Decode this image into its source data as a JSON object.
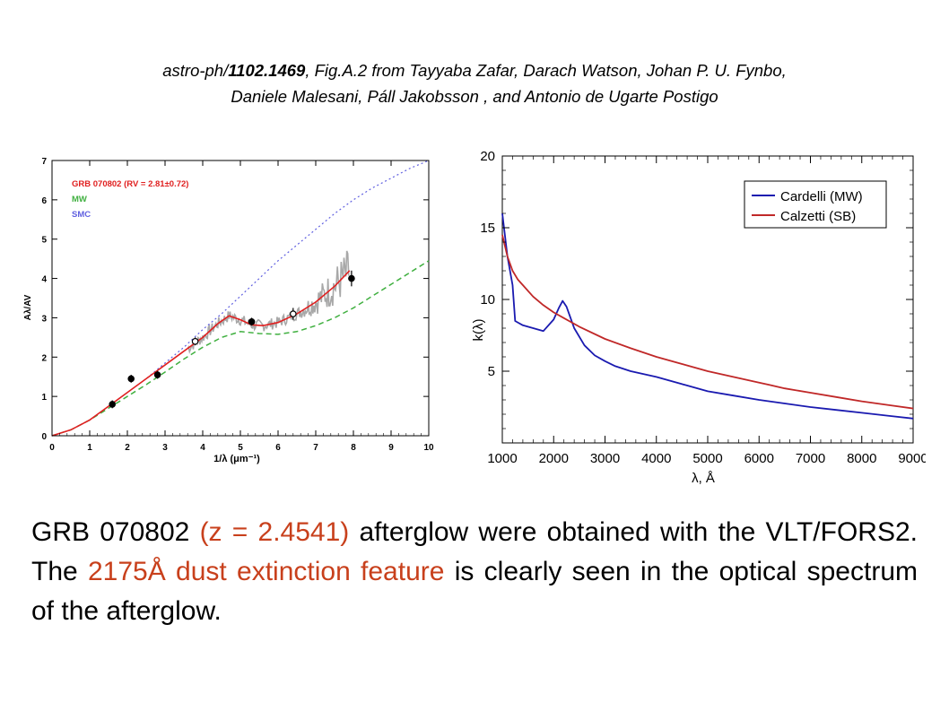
{
  "header": {
    "prefix": "astro-ph/",
    "arxiv_id": "1102.1469",
    "line1_rest": ", Fig.A.2 from Tayyaba Zafar, Darach Watson, Johan P. U. Fynbo,",
    "line2": "Daniele Malesani, Páll Jakobsson , and Antonio de Ugarte Postigo"
  },
  "caption": {
    "part1": "GRB 070802 ",
    "part2": "(z = 2.4541)",
    "part3": " afterglow were obtained with the VLT/FORS2. The ",
    "part4": "2175Å dust extinction feature",
    "part5": " is clearly seen in the optical spectrum of the afterglow."
  },
  "colors": {
    "highlight": "#c8401c",
    "mw_red": "#e02020",
    "mw_green": "#40b040",
    "smc_blue": "#6060e0",
    "cardelli": "#1a1ab0",
    "calzetti": "#c02828"
  },
  "chart_data": [
    {
      "type": "line",
      "xlabel": "1/λ (μm⁻¹)",
      "ylabel": "Aλ/AV",
      "xlim": [
        0,
        10
      ],
      "ylim": [
        0,
        7
      ],
      "x_ticks": [
        "0",
        "1",
        "2",
        "3",
        "4",
        "5",
        "6",
        "7",
        "8",
        "9",
        "10"
      ],
      "y_ticks": [
        "0",
        "1",
        "2",
        "3",
        "4",
        "5",
        "6",
        "7"
      ],
      "legend": [
        "GRB 070802 (RV = 2.81±0.72)",
        "MW",
        "SMC"
      ],
      "legend_position": "top-left",
      "series": [
        {
          "name": "GRB 070802 (RV = 2.81±0.72)",
          "x": [
            0.0,
            0.5,
            1.0,
            1.5,
            2.0,
            2.5,
            3.0,
            3.5,
            4.0,
            4.4,
            4.7,
            5.0,
            5.3,
            5.6,
            6.0,
            6.5,
            7.0,
            7.5,
            7.9
          ],
          "y": [
            0.0,
            0.15,
            0.4,
            0.75,
            1.1,
            1.45,
            1.8,
            2.15,
            2.5,
            2.85,
            3.05,
            2.95,
            2.82,
            2.8,
            2.88,
            3.1,
            3.4,
            3.8,
            4.2
          ]
        },
        {
          "name": "MW",
          "x": [
            0.0,
            0.5,
            1.0,
            1.5,
            2.0,
            2.5,
            3.0,
            3.5,
            4.0,
            4.5,
            5.0,
            5.5,
            6.0,
            6.5,
            7.0,
            7.5,
            8.0,
            8.5,
            9.0,
            9.5,
            10.0
          ],
          "y": [
            0.0,
            0.15,
            0.4,
            0.7,
            1.0,
            1.3,
            1.62,
            1.95,
            2.25,
            2.5,
            2.65,
            2.6,
            2.58,
            2.65,
            2.8,
            3.0,
            3.25,
            3.55,
            3.85,
            4.15,
            4.45
          ]
        },
        {
          "name": "SMC",
          "x": [
            0.0,
            0.5,
            1.0,
            1.5,
            2.0,
            2.5,
            3.0,
            3.5,
            4.0,
            4.5,
            5.0,
            5.5,
            6.0,
            6.5,
            7.0,
            7.5,
            8.0,
            8.5,
            9.0,
            9.5,
            10.0
          ],
          "y": [
            0.0,
            0.15,
            0.4,
            0.75,
            1.1,
            1.45,
            1.85,
            2.25,
            2.7,
            3.1,
            3.55,
            4.0,
            4.45,
            4.85,
            5.25,
            5.65,
            6.0,
            6.3,
            6.55,
            6.8,
            7.0
          ]
        }
      ],
      "photometry": [
        {
          "x": 1.6,
          "y": 0.8,
          "err": 0.1,
          "filled": true
        },
        {
          "x": 2.1,
          "y": 1.45,
          "err": 0.1,
          "filled": true
        },
        {
          "x": 2.8,
          "y": 1.55,
          "err": 0.1,
          "filled": true
        },
        {
          "x": 3.8,
          "y": 2.4,
          "err": 0.1,
          "filled": false
        },
        {
          "x": 5.3,
          "y": 2.9,
          "err": 0.1,
          "filled": true
        },
        {
          "x": 6.4,
          "y": 3.1,
          "err": 0.15,
          "filled": false
        },
        {
          "x": 7.95,
          "y": 4.0,
          "err": 0.2,
          "filled": true
        }
      ]
    },
    {
      "type": "line",
      "xlabel": "λ, Å",
      "ylabel": "k(λ)",
      "xlim": [
        1000,
        9000
      ],
      "ylim": [
        0,
        20
      ],
      "x_ticks": [
        "1000",
        "2000",
        "3000",
        "4000",
        "5000",
        "6000",
        "7000",
        "8000",
        "9000"
      ],
      "y_ticks": [
        "5",
        "10",
        "15",
        "20"
      ],
      "legend_position": "top-right",
      "series": [
        {
          "name": "Cardelli (MW)",
          "x": [
            1000,
            1100,
            1200,
            1250,
            1300,
            1400,
            1600,
            1800,
            2000,
            2100,
            2175,
            2250,
            2400,
            2600,
            2800,
            3000,
            3200,
            3500,
            4000,
            4500,
            5000,
            5500,
            6000,
            6500,
            7000,
            7500,
            8000,
            8500,
            9000
          ],
          "y": [
            16.0,
            13.0,
            11.0,
            8.5,
            8.4,
            8.2,
            8.0,
            7.8,
            8.6,
            9.4,
            9.9,
            9.5,
            8.0,
            6.8,
            6.1,
            5.7,
            5.35,
            5.0,
            4.6,
            4.1,
            3.6,
            3.3,
            3.0,
            2.75,
            2.5,
            2.3,
            2.1,
            1.9,
            1.7
          ]
        },
        {
          "name": "Calzetti (SB)",
          "x": [
            1000,
            1100,
            1200,
            1300,
            1400,
            1600,
            1800,
            2000,
            2200,
            2500,
            3000,
            3500,
            4000,
            4500,
            5000,
            5500,
            6000,
            6200,
            6500,
            7000,
            7500,
            8000,
            8500,
            9000
          ],
          "y": [
            14.5,
            13.0,
            12.0,
            11.4,
            11.0,
            10.2,
            9.6,
            9.1,
            8.7,
            8.1,
            7.25,
            6.6,
            6.0,
            5.5,
            5.0,
            4.6,
            4.2,
            4.05,
            3.8,
            3.5,
            3.2,
            2.9,
            2.65,
            2.4
          ]
        }
      ]
    }
  ]
}
